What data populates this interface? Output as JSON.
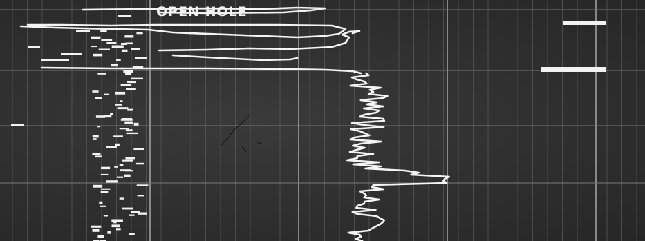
{
  "annotation": {
    "label": "OPEN HOLE"
  },
  "colors": {
    "film": "#2e2e2e",
    "trace": "#f4f4f4",
    "grid_major": "#b9b9b9",
    "grid_minor": "#5c5c5c"
  }
}
